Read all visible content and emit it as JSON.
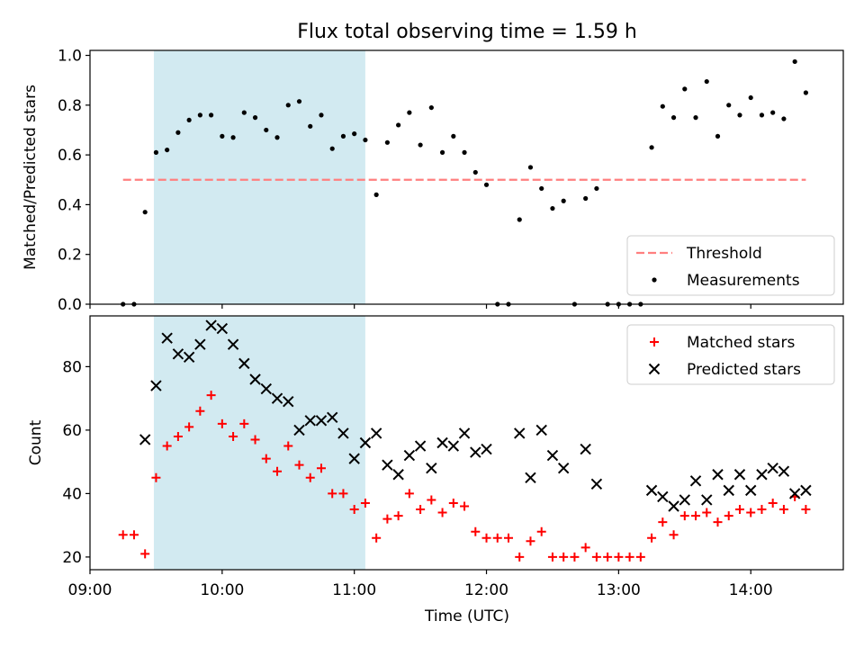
{
  "chart_data": {
    "title": "Flux total observing time = 1.59 h",
    "xlabel": "Time (UTC)",
    "x_ticks": [
      "09:00",
      "10:00",
      "11:00",
      "12:00",
      "13:00",
      "14:00"
    ],
    "xlim": [
      "09:00",
      "14:42"
    ],
    "shaded_interval": {
      "start": "09:29",
      "end": "11:05",
      "color": "#add8e6"
    },
    "panels": [
      {
        "type": "scatter",
        "ylabel": "Matched/Predicted stars",
        "ylim": [
          0,
          1.02
        ],
        "y_ticks": [
          "0.0",
          "0.2",
          "0.4",
          "0.6",
          "0.8",
          "1.0"
        ],
        "legend_position": "lower right",
        "series": [
          {
            "name": "Threshold",
            "style": "dashed-line",
            "color": "#ff7f7f",
            "points": [
              [
                "09:15",
                0.5
              ],
              [
                "14:25",
                0.5
              ]
            ]
          },
          {
            "name": "Measurements",
            "style": "dot",
            "color": "#000000",
            "points": [
              [
                "09:15",
                0.0
              ],
              [
                "09:20",
                0.0
              ],
              [
                "09:25",
                0.37
              ],
              [
                "09:30",
                0.61
              ],
              [
                "09:35",
                0.62
              ],
              [
                "09:40",
                0.69
              ],
              [
                "09:45",
                0.74
              ],
              [
                "09:50",
                0.76
              ],
              [
                "09:55",
                0.76
              ],
              [
                "10:00",
                0.675
              ],
              [
                "10:05",
                0.67
              ],
              [
                "10:10",
                0.77
              ],
              [
                "10:15",
                0.75
              ],
              [
                "10:20",
                0.7
              ],
              [
                "10:25",
                0.67
              ],
              [
                "10:30",
                0.8
              ],
              [
                "10:35",
                0.815
              ],
              [
                "10:40",
                0.715
              ],
              [
                "10:45",
                0.76
              ],
              [
                "10:50",
                0.625
              ],
              [
                "10:55",
                0.675
              ],
              [
                "11:00",
                0.685
              ],
              [
                "11:05",
                0.66
              ],
              [
                "11:10",
                0.44
              ],
              [
                "11:15",
                0.65
              ],
              [
                "11:20",
                0.72
              ],
              [
                "11:25",
                0.77
              ],
              [
                "11:30",
                0.64
              ],
              [
                "11:35",
                0.79
              ],
              [
                "11:40",
                0.61
              ],
              [
                "11:45",
                0.675
              ],
              [
                "11:50",
                0.61
              ],
              [
                "11:55",
                0.53
              ],
              [
                "12:00",
                0.48
              ],
              [
                "12:05",
                0.0
              ],
              [
                "12:10",
                0.0
              ],
              [
                "12:15",
                0.34
              ],
              [
                "12:20",
                0.55
              ],
              [
                "12:25",
                0.465
              ],
              [
                "12:30",
                0.385
              ],
              [
                "12:35",
                0.415
              ],
              [
                "12:40",
                0.0
              ],
              [
                "12:45",
                0.425
              ],
              [
                "12:50",
                0.465
              ],
              [
                "12:55",
                0.0
              ],
              [
                "13:00",
                0.0
              ],
              [
                "13:05",
                0.0
              ],
              [
                "13:10",
                0.0
              ],
              [
                "13:15",
                0.63
              ],
              [
                "13:20",
                0.795
              ],
              [
                "13:25",
                0.75
              ],
              [
                "13:30",
                0.865
              ],
              [
                "13:35",
                0.75
              ],
              [
                "13:40",
                0.895
              ],
              [
                "13:45",
                0.675
              ],
              [
                "13:50",
                0.8
              ],
              [
                "13:55",
                0.76
              ],
              [
                "14:00",
                0.83
              ],
              [
                "14:05",
                0.76
              ],
              [
                "14:10",
                0.77
              ],
              [
                "14:15",
                0.745
              ],
              [
                "14:20",
                0.975
              ],
              [
                "14:25",
                0.85
              ]
            ]
          }
        ]
      },
      {
        "type": "scatter",
        "ylabel": "Count",
        "ylim": [
          16,
          96
        ],
        "y_ticks": [
          "20",
          "40",
          "60",
          "80"
        ],
        "legend_position": "upper right",
        "series": [
          {
            "name": "Matched stars",
            "marker": "+",
            "color": "#ff0000",
            "points": [
              [
                "09:15",
                27
              ],
              [
                "09:20",
                27
              ],
              [
                "09:25",
                21
              ],
              [
                "09:30",
                45
              ],
              [
                "09:35",
                55
              ],
              [
                "09:40",
                58
              ],
              [
                "09:45",
                61
              ],
              [
                "09:50",
                66
              ],
              [
                "09:55",
                71
              ],
              [
                "10:00",
                62
              ],
              [
                "10:05",
                58
              ],
              [
                "10:10",
                62
              ],
              [
                "10:15",
                57
              ],
              [
                "10:20",
                51
              ],
              [
                "10:25",
                47
              ],
              [
                "10:30",
                55
              ],
              [
                "10:35",
                49
              ],
              [
                "10:40",
                45
              ],
              [
                "10:45",
                48
              ],
              [
                "10:50",
                40
              ],
              [
                "10:55",
                40
              ],
              [
                "11:00",
                35
              ],
              [
                "11:05",
                37
              ],
              [
                "11:10",
                26
              ],
              [
                "11:15",
                32
              ],
              [
                "11:20",
                33
              ],
              [
                "11:25",
                40
              ],
              [
                "11:30",
                35
              ],
              [
                "11:35",
                38
              ],
              [
                "11:40",
                34
              ],
              [
                "11:45",
                37
              ],
              [
                "11:50",
                36
              ],
              [
                "11:55",
                28
              ],
              [
                "12:00",
                26
              ],
              [
                "12:05",
                26
              ],
              [
                "12:10",
                26
              ],
              [
                "12:15",
                20
              ],
              [
                "12:20",
                25
              ],
              [
                "12:25",
                28
              ],
              [
                "12:30",
                20
              ],
              [
                "12:35",
                20
              ],
              [
                "12:40",
                20
              ],
              [
                "12:45",
                23
              ],
              [
                "12:50",
                20
              ],
              [
                "12:55",
                20
              ],
              [
                "13:00",
                20
              ],
              [
                "13:05",
                20
              ],
              [
                "13:10",
                20
              ],
              [
                "13:15",
                26
              ],
              [
                "13:20",
                31
              ],
              [
                "13:25",
                27
              ],
              [
                "13:30",
                33
              ],
              [
                "13:35",
                33
              ],
              [
                "13:40",
                34
              ],
              [
                "13:45",
                31
              ],
              [
                "13:50",
                33
              ],
              [
                "13:55",
                35
              ],
              [
                "14:00",
                34
              ],
              [
                "14:05",
                35
              ],
              [
                "14:10",
                37
              ],
              [
                "14:15",
                35
              ],
              [
                "14:20",
                39
              ],
              [
                "14:25",
                35
              ]
            ]
          },
          {
            "name": "Predicted stars",
            "marker": "x",
            "color": "#000000",
            "points": [
              [
                "09:25",
                57
              ],
              [
                "09:30",
                74
              ],
              [
                "09:35",
                89
              ],
              [
                "09:40",
                84
              ],
              [
                "09:45",
                83
              ],
              [
                "09:50",
                87
              ],
              [
                "09:55",
                93
              ],
              [
                "10:00",
                92
              ],
              [
                "10:05",
                87
              ],
              [
                "10:10",
                81
              ],
              [
                "10:15",
                76
              ],
              [
                "10:20",
                73
              ],
              [
                "10:25",
                70
              ],
              [
                "10:30",
                69
              ],
              [
                "10:35",
                60
              ],
              [
                "10:40",
                63
              ],
              [
                "10:45",
                63
              ],
              [
                "10:50",
                64
              ],
              [
                "10:55",
                59
              ],
              [
                "11:00",
                51
              ],
              [
                "11:05",
                56
              ],
              [
                "11:10",
                59
              ],
              [
                "11:15",
                49
              ],
              [
                "11:20",
                46
              ],
              [
                "11:25",
                52
              ],
              [
                "11:30",
                55
              ],
              [
                "11:35",
                48
              ],
              [
                "11:40",
                56
              ],
              [
                "11:45",
                55
              ],
              [
                "11:50",
                59
              ],
              [
                "11:55",
                53
              ],
              [
                "12:00",
                54
              ],
              [
                "12:15",
                59
              ],
              [
                "12:20",
                45
              ],
              [
                "12:25",
                60
              ],
              [
                "12:30",
                52
              ],
              [
                "12:35",
                48
              ],
              [
                "12:45",
                54
              ],
              [
                "12:50",
                43
              ],
              [
                "13:15",
                41
              ],
              [
                "13:20",
                39
              ],
              [
                "13:25",
                36
              ],
              [
                "13:30",
                38
              ],
              [
                "13:35",
                44
              ],
              [
                "13:40",
                38
              ],
              [
                "13:45",
                46
              ],
              [
                "13:50",
                41
              ],
              [
                "13:55",
                46
              ],
              [
                "14:00",
                41
              ],
              [
                "14:05",
                46
              ],
              [
                "14:10",
                48
              ],
              [
                "14:15",
                47
              ],
              [
                "14:20",
                40
              ],
              [
                "14:25",
                41
              ]
            ]
          }
        ]
      }
    ]
  }
}
